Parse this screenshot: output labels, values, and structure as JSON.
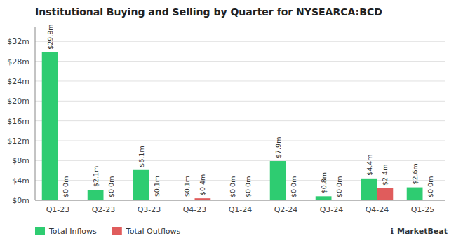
{
  "chart_data": {
    "type": "bar",
    "title": "Institutional Buying and Selling by Quarter for NYSEARCA:BCD",
    "categories": [
      "Q1-23",
      "Q2-23",
      "Q3-23",
      "Q4-23",
      "Q1-24",
      "Q2-24",
      "Q3-24",
      "Q4-24",
      "Q1-25"
    ],
    "series": [
      {
        "name": "Total Inflows",
        "color": "#2ecc71",
        "values": [
          29.8,
          2.1,
          6.1,
          0.1,
          0.0,
          7.9,
          0.8,
          4.4,
          2.6
        ],
        "value_labels": [
          "$29.8m",
          "$2.1m",
          "$6.1m",
          "$0.1m",
          "$0.0m",
          "$7.9m",
          "$0.8m",
          "$4.4m",
          "$2.6m"
        ]
      },
      {
        "name": "Total Outflows",
        "color": "#e05c5c",
        "values": [
          0.0,
          0.0,
          0.1,
          0.4,
          0.0,
          0.0,
          0.0,
          2.4,
          0.0
        ],
        "value_labels": [
          "$0.0m",
          "$0.0m",
          "$0.1m",
          "$0.4m",
          "$0.0m",
          "$0.0m",
          "$0.0m",
          "$2.4m",
          "$0.0m"
        ]
      }
    ],
    "ylim": [
      0,
      35
    ],
    "yticks": [
      {
        "value": 0,
        "label": "$0m"
      },
      {
        "value": 4,
        "label": "$4m"
      },
      {
        "value": 8,
        "label": "$8m"
      },
      {
        "value": 12,
        "label": "$12m"
      },
      {
        "value": 16,
        "label": "$16m"
      },
      {
        "value": 20,
        "label": "$20m"
      },
      {
        "value": 24,
        "label": "$24m"
      },
      {
        "value": 28,
        "label": "$28m"
      },
      {
        "value": 32,
        "label": "$32m"
      }
    ],
    "grid": true,
    "legend": "lower left",
    "data_labels": true,
    "annotations": [
      "ℹ",
      "MarketBeat"
    ]
  }
}
